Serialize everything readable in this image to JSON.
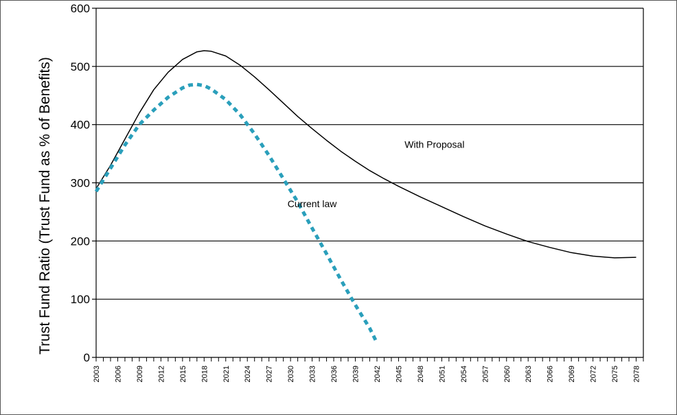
{
  "chart_data": {
    "type": "line",
    "title": "",
    "xlabel": "",
    "ylabel": "Trust Fund Ratio (Trust Fund as % of Benefits)",
    "ylim": [
      0,
      600
    ],
    "yticks": [
      0,
      100,
      200,
      300,
      400,
      500,
      600
    ],
    "xlim": [
      2003,
      2079
    ],
    "xticks": [
      "2003",
      "2006",
      "2009",
      "2012",
      "2015",
      "2018",
      "2021",
      "2024",
      "2027",
      "2030",
      "2033",
      "2036",
      "2039",
      "2042",
      "2045",
      "2048",
      "2051",
      "2054",
      "2057",
      "2060",
      "2063",
      "2066",
      "2069",
      "2072",
      "2075",
      "2078"
    ],
    "grid": "horizontal",
    "series": [
      {
        "name": "With Proposal",
        "style": "solid",
        "color": "#000000",
        "x": [
          2003,
          2005,
          2007,
          2009,
          2011,
          2013,
          2015,
          2017,
          2018,
          2019,
          2021,
          2023,
          2025,
          2027,
          2029,
          2031,
          2033,
          2035,
          2037,
          2039,
          2041,
          2043,
          2045,
          2048,
          2051,
          2054,
          2057,
          2060,
          2063,
          2066,
          2069,
          2072,
          2075,
          2078
        ],
        "values": [
          290,
          330,
          375,
          420,
          460,
          490,
          512,
          525,
          527,
          526,
          518,
          502,
          482,
          460,
          437,
          414,
          393,
          373,
          354,
          337,
          321,
          307,
          294,
          276,
          259,
          242,
          226,
          212,
          199,
          189,
          180,
          174,
          171,
          172
        ]
      },
      {
        "name": "Current law",
        "style": "dashed",
        "color": "#2a9fbb",
        "x": [
          2003,
          2005,
          2007,
          2009,
          2011,
          2013,
          2015,
          2016,
          2017,
          2018,
          2019,
          2021,
          2023,
          2025,
          2027,
          2029,
          2031,
          2033,
          2035,
          2037,
          2039,
          2041,
          2042
        ],
        "values": [
          285,
          325,
          365,
          400,
          425,
          447,
          463,
          468,
          469,
          467,
          461,
          443,
          417,
          384,
          347,
          307,
          267,
          222,
          178,
          133,
          90,
          50,
          25
        ]
      }
    ],
    "annotations": [
      {
        "text": "With Proposal",
        "x": 2050,
        "y": 360
      },
      {
        "text": "Current law",
        "x": 2033,
        "y": 258
      }
    ]
  }
}
